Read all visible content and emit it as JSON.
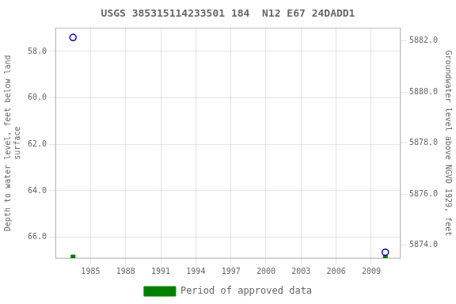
{
  "chart_data": {
    "type": "scatter",
    "title": "USGS 385315114233501 184  N12 E67 24DADD1",
    "y_label": "Depth to water level, feet below land\nsurface",
    "y2_label": "Groundwater level above NGVD 1929, feet",
    "x": [
      1983.5,
      2010.2
    ],
    "series": [
      {
        "color": "#0000cc",
        "marker": "circle",
        "values": [
          57.4,
          66.65
        ]
      },
      {
        "name": "Period of approved data",
        "color": "#008000",
        "marker": "square",
        "values": [
          66.85,
          66.85
        ]
      }
    ],
    "xlim": [
      1982.0,
      2011.5
    ],
    "xticks": [
      1985,
      1988,
      1991,
      1994,
      1997,
      2000,
      2003,
      2006,
      2009
    ],
    "ylim": [
      66.9,
      57.0
    ],
    "yticks": [
      {
        "value": 58.0,
        "label": "58.0"
      },
      {
        "value": 60.0,
        "label": "60.0"
      },
      {
        "value": 62.0,
        "label": "62.0"
      },
      {
        "value": 64.0,
        "label": "64.0"
      },
      {
        "value": 66.0,
        "label": "66.0"
      }
    ],
    "y2lim": [
      5873.5,
      5882.5
    ],
    "y2ticks": [
      {
        "value": 5882.0,
        "label": "5882.0"
      },
      {
        "value": 5880.0,
        "label": "5880.0"
      },
      {
        "value": 5878.0,
        "label": "5878.0"
      },
      {
        "value": 5876.0,
        "label": "5876.0"
      },
      {
        "value": 5874.0,
        "label": "5874.0"
      }
    ],
    "grid": true,
    "legend": "bottom"
  }
}
